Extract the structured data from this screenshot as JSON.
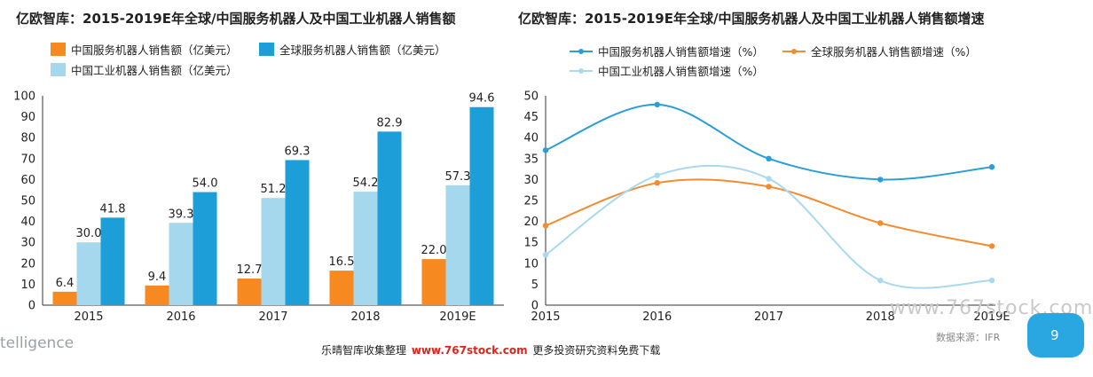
{
  "colors": {
    "china_service": "#f6891f",
    "china_industrial": "#a6d8ed",
    "global_service": "#1d9ed8",
    "line_china_service": "#2a9ed6",
    "line_global_service": "#f48b2f",
    "line_china_industrial": "#a8d9ef"
  },
  "footer": {
    "left_text": "telligence",
    "center_prefix": "乐晴智库收集整理",
    "center_site": "www.767stock.com",
    "center_suffix": "更多投资研究资料免费下载",
    "source": "数据来源：IFR",
    "watermark": "www.767stock.com",
    "page_number": "9"
  },
  "chart_data": [
    {
      "type": "bar",
      "title": "亿欧智库：2015-2019E年全球/中国服务机器人及中国工业机器人销售额",
      "categories": [
        "2015",
        "2016",
        "2017",
        "2018",
        "2019E"
      ],
      "series": [
        {
          "name": "中国服务机器人销售额（亿美元）",
          "values": [
            6.4,
            9.4,
            12.7,
            16.5,
            22.0
          ],
          "labels": [
            "6.4",
            "9.4",
            "12.7",
            "16.5",
            "22.0"
          ]
        },
        {
          "name": "中国工业机器人销售额（亿美元）",
          "values": [
            30.0,
            39.3,
            51.2,
            54.2,
            57.3
          ],
          "labels": [
            "30.0",
            "39.3",
            "51.2",
            "54.2",
            "57.3"
          ]
        },
        {
          "name": "全球服务机器人销售额（亿美元）",
          "values": [
            41.8,
            54.0,
            69.3,
            82.9,
            94.6
          ],
          "labels": [
            "41.8",
            "54.0",
            "69.3",
            "82.9",
            "94.6"
          ]
        }
      ],
      "ylim": [
        0,
        100
      ],
      "yticks": [
        "0",
        "10",
        "20",
        "30",
        "40",
        "50",
        "60",
        "70",
        "80",
        "90",
        "100"
      ],
      "legend_placement": "top-left",
      "grid": false
    },
    {
      "type": "line",
      "title": "亿欧智库：2015-2019E年全球/中国服务机器人及中国工业机器人销售额增速",
      "x": [
        "2015",
        "2016",
        "2017",
        "2018",
        "2019E"
      ],
      "series": [
        {
          "name": "中国服务机器人销售额增速（%）",
          "values": [
            37.0,
            47.9,
            35.0,
            30.0,
            33.0
          ]
        },
        {
          "name": "全球服务机器人销售额增速（%）",
          "values": [
            19.0,
            29.2,
            28.3,
            19.6,
            14.1
          ]
        },
        {
          "name": "中国工业机器人销售额增速（%）",
          "values": [
            12.0,
            31.0,
            30.2,
            5.9,
            5.9
          ]
        }
      ],
      "ylim": [
        0,
        50
      ],
      "yticks": [
        "0",
        "5",
        "10",
        "15",
        "20",
        "25",
        "30",
        "35",
        "40",
        "45",
        "50"
      ],
      "legend_placement": "top",
      "grid": false
    }
  ]
}
